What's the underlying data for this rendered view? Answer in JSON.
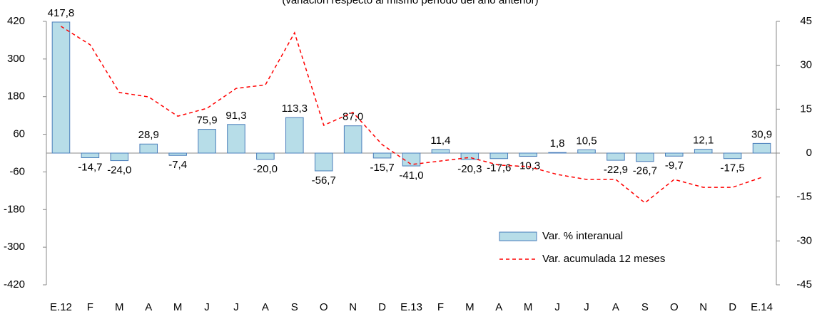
{
  "chart_data": {
    "type": "bar",
    "subtitle": "(variación respecto al mismo período del año anterior)",
    "categories": [
      "E.12",
      "F",
      "M",
      "A",
      "M",
      "J",
      "J",
      "A",
      "S",
      "O",
      "N",
      "D",
      "E.13",
      "F",
      "M",
      "A",
      "M",
      "J",
      "J",
      "A",
      "S",
      "O",
      "N",
      "D",
      "E.14"
    ],
    "series": [
      {
        "name": "Var. % interanual",
        "type": "bar",
        "color": "#b7dde8",
        "stroke": "#4a7ebb",
        "values": [
          417.8,
          -14.7,
          -24.0,
          28.9,
          -7.4,
          75.9,
          91.3,
          -20.0,
          113.3,
          -56.7,
          87.0,
          -15.7,
          -41.0,
          11.4,
          -20.3,
          -17.6,
          -10.3,
          1.8,
          10.5,
          -22.9,
          -26.7,
          -9.7,
          12.1,
          -17.5,
          30.9
        ],
        "value_labels": [
          "417,8",
          "-14,7",
          "-24,0",
          "28,9",
          "-7,4",
          "75,9",
          "91,3",
          "-20,0",
          "113,3",
          "-56,7",
          "87,0",
          "-15,7",
          "-41,0",
          "11,4",
          "-20,3",
          "-17,6",
          "-10,3",
          "1,8",
          "10,5",
          "-22,9",
          "-26,7",
          "-9,7",
          "12,1",
          "-17,5",
          "30,9"
        ]
      },
      {
        "name": "Var. acumulada 12 meses",
        "type": "line",
        "axis": "y2",
        "color": "#ff0000",
        "values": [
          43.3,
          37.0,
          20.7,
          19.2,
          12.6,
          15.3,
          22.1,
          23.3,
          41.1,
          9.5,
          13.9,
          2.9,
          -3.9,
          -2.7,
          -1.5,
          -4.1,
          -4.6,
          -7.3,
          -9.0,
          -9.0,
          -17.0,
          -9.0,
          -11.7,
          -11.7,
          -8.3
        ]
      }
    ],
    "ylim": [
      -420,
      420
    ],
    "yticks": [
      -420,
      -300,
      -180,
      -60,
      60,
      180,
      300,
      420
    ],
    "y2lim": [
      -45,
      45
    ],
    "y2ticks": [
      -45,
      -30,
      -15,
      0,
      15,
      30,
      45
    ],
    "legend": "lower right"
  }
}
